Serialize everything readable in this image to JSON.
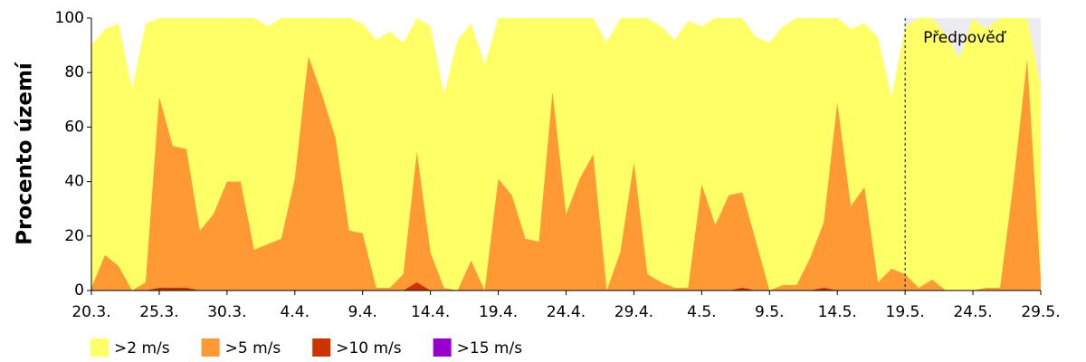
{
  "chart_data": {
    "type": "area",
    "y_label": "Procento území",
    "annotation": "Předpověď",
    "forecast_start": "19.5.",
    "categories": [
      "20.3.",
      null,
      null,
      null,
      null,
      "25.3.",
      null,
      null,
      null,
      null,
      "30.3.",
      null,
      null,
      null,
      null,
      "4.4.",
      null,
      null,
      null,
      null,
      "9.4.",
      null,
      null,
      null,
      null,
      "14.4.",
      null,
      null,
      null,
      null,
      "19.4.",
      null,
      null,
      null,
      null,
      "24.4.",
      null,
      null,
      null,
      null,
      "29.4.",
      null,
      null,
      null,
      null,
      "4.5.",
      null,
      null,
      null,
      null,
      "9.5.",
      null,
      null,
      null,
      null,
      "14.5.",
      null,
      null,
      null,
      null,
      "19.5.",
      null,
      null,
      null,
      null,
      "24.5.",
      null,
      null,
      null,
      null,
      "29.5."
    ],
    "series": [
      {
        "name": ">2 m/s",
        "color": "#ffff66",
        "values": [
          90,
          96,
          98,
          74,
          98,
          100,
          100,
          100,
          100,
          100,
          100,
          100,
          100,
          97,
          100,
          100,
          100,
          100,
          100,
          100,
          98,
          92,
          95,
          91,
          100,
          97,
          72,
          92,
          98,
          83,
          100,
          100,
          100,
          100,
          100,
          100,
          100,
          100,
          91,
          100,
          100,
          100,
          97,
          92,
          99,
          97,
          100,
          100,
          100,
          93,
          91,
          97,
          100,
          100,
          100,
          100,
          96,
          98,
          93,
          71,
          97,
          100,
          100,
          94,
          85,
          100,
          96,
          100,
          100,
          100,
          75
        ]
      },
      {
        "name": ">5 m/s",
        "color": "#ff9933",
        "values": [
          1,
          13,
          9,
          0,
          3,
          71,
          53,
          52,
          22,
          28,
          40,
          40,
          15,
          17,
          19,
          41,
          86,
          72,
          56,
          22,
          21,
          1,
          1,
          6,
          51,
          14,
          1,
          0,
          11,
          0,
          41,
          35,
          19,
          18,
          73,
          28,
          41,
          50,
          0,
          14,
          47,
          6,
          3,
          1,
          1,
          39,
          24,
          35,
          36,
          18,
          0,
          2,
          2,
          12,
          25,
          69,
          31,
          38,
          3,
          8,
          6,
          1,
          4,
          0,
          0,
          0,
          1,
          1,
          40,
          85,
          4
        ]
      },
      {
        "name": ">10 m/s",
        "color": "#cc3300",
        "values": [
          0,
          0,
          0,
          0,
          0,
          1,
          1,
          1,
          0,
          0,
          0,
          0,
          0,
          0,
          0,
          0,
          0,
          0,
          0,
          0,
          0,
          0,
          0,
          0,
          3,
          0,
          0,
          0,
          0,
          0,
          0,
          0,
          0,
          0,
          0,
          0,
          0,
          0,
          0,
          0,
          0,
          0,
          0,
          0,
          0,
          0,
          0,
          0,
          1,
          0,
          0,
          0,
          0,
          0,
          1,
          0,
          0,
          0,
          0,
          0,
          0,
          0,
          0,
          0,
          0,
          0,
          0,
          0,
          0,
          0,
          0
        ]
      },
      {
        "name": ">15 m/s",
        "color": "#9900cc",
        "values": [
          0,
          0,
          0,
          0,
          0,
          0,
          0,
          0,
          0,
          0,
          0,
          0,
          0,
          0,
          0,
          0,
          0,
          0,
          0,
          0,
          0,
          0,
          0,
          0,
          0,
          0,
          0,
          0,
          0,
          0,
          0,
          0,
          0,
          0,
          0,
          0,
          0,
          0,
          0,
          0,
          0,
          0,
          0,
          0,
          0,
          0,
          0,
          0,
          0,
          0,
          0,
          0,
          0,
          0,
          0,
          0,
          0,
          0,
          0,
          0,
          0,
          0,
          0,
          0,
          0,
          0,
          0,
          0,
          0,
          0,
          0
        ]
      }
    ],
    "ylim": [
      0,
      100
    ],
    "yticks": [
      0,
      20,
      40,
      60,
      80,
      100
    ],
    "grid": false
  }
}
